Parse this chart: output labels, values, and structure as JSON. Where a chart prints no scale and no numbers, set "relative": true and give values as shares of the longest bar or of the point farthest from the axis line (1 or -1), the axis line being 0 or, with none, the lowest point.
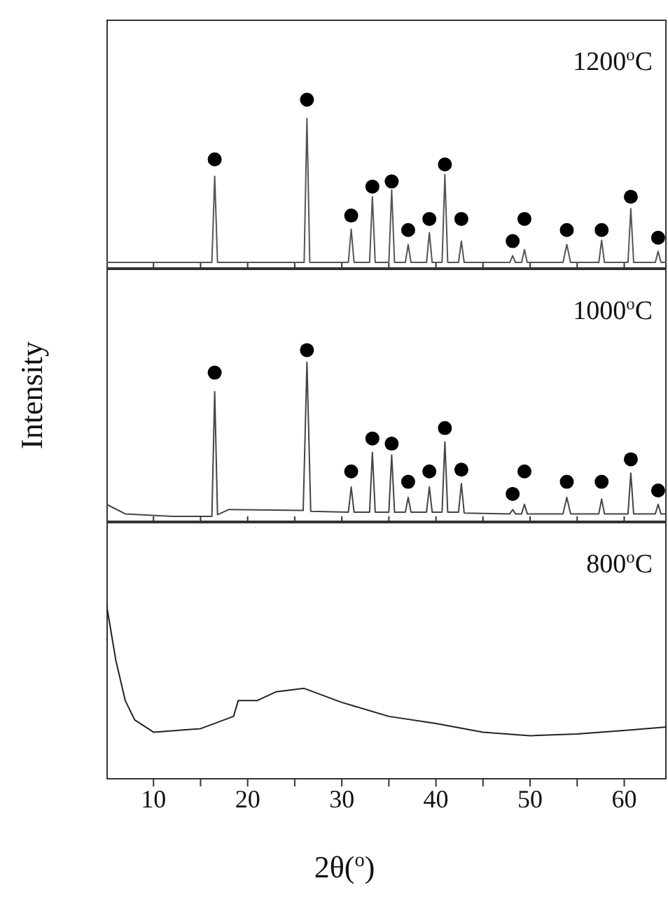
{
  "chart_data": [
    {
      "type": "line",
      "relative": true,
      "annotations": [
        "1200$^{o}$C"
      ],
      "xlim": [
        5,
        64.5
      ],
      "xticks": [
        10,
        {
          "value": 15,
          "label": null
        },
        20,
        {
          "value": 25,
          "label": null
        },
        30,
        {
          "value": 35,
          "label": null
        },
        40,
        {
          "value": 45,
          "label": null
        },
        50,
        {
          "value": 55,
          "label": null
        },
        60
      ],
      "tick_labels": false,
      "series": [
        {
          "color": "#555555",
          "marker": "none",
          "x": [
            5,
            16.2,
            16.5,
            16.8,
            26.0,
            26.3,
            26.6,
            30.7,
            31.0,
            31.3,
            32.95,
            33.25,
            33.55,
            35.0,
            35.3,
            35.6,
            36.75,
            37.05,
            37.35,
            39.0,
            39.3,
            39.6,
            40.65,
            40.95,
            41.25,
            42.4,
            42.7,
            43.0,
            47.85,
            48.15,
            48.45,
            49.1,
            49.4,
            49.7,
            53.5,
            53.9,
            54.3,
            57.3,
            57.6,
            57.9,
            60.4,
            60.7,
            61.0,
            63.3,
            63.6,
            63.9,
            64.5
          ],
          "values": [
            0.045,
            0.045,
            0.55,
            0.045,
            0.045,
            0.89,
            0.045,
            0.045,
            0.24,
            0.045,
            0.045,
            0.43,
            0.045,
            0.045,
            0.47,
            0.045,
            0.045,
            0.15,
            0.045,
            0.045,
            0.22,
            0.045,
            0.045,
            0.56,
            0.045,
            0.045,
            0.17,
            0.045,
            0.045,
            0.085,
            0.045,
            0.045,
            0.12,
            0.045,
            0.045,
            0.15,
            0.045,
            0.045,
            0.175,
            0.045,
            0.045,
            0.36,
            0.045,
            0.045,
            0.11,
            0.045,
            0.045
          ]
        },
        {
          "type": "scatter",
          "color": "#000000",
          "marker": "circle",
          "x": [
            16.5,
            26.3,
            31.0,
            33.25,
            35.3,
            37.05,
            39.3,
            40.95,
            42.7,
            48.15,
            49.4,
            53.9,
            57.6,
            60.7,
            63.6
          ],
          "values": [
            0.65,
            1.0,
            0.32,
            0.49,
            0.52,
            0.235,
            0.3,
            0.62,
            0.3,
            0.17,
            0.3,
            0.235,
            0.235,
            0.43,
            0.19
          ]
        }
      ]
    },
    {
      "type": "line",
      "relative": true,
      "ylabel": "Intensity",
      "annotations": [
        "1000$^{o}$C"
      ],
      "xlim": [
        5,
        64.5
      ],
      "xticks": [
        10,
        {
          "value": 15,
          "label": null
        },
        20,
        {
          "value": 25,
          "label": null
        },
        30,
        {
          "value": 35,
          "label": null
        },
        40,
        {
          "value": 45,
          "label": null
        },
        50,
        {
          "value": 55,
          "label": null
        },
        60
      ],
      "tick_labels": false,
      "series": [
        {
          "color": "#444444",
          "marker": "none",
          "x": [
            5,
            7,
            12,
            16.2,
            16.5,
            16.8,
            18,
            25.9,
            26.3,
            26.7,
            30.7,
            31.0,
            31.3,
            32.95,
            33.25,
            33.55,
            35.0,
            35.3,
            35.6,
            36.75,
            37.05,
            37.35,
            39.0,
            39.3,
            39.6,
            40.65,
            40.95,
            41.25,
            42.4,
            42.7,
            43.0,
            47.85,
            48.15,
            48.45,
            49.1,
            49.4,
            49.7,
            53.5,
            53.9,
            54.3,
            57.3,
            57.6,
            57.9,
            60.4,
            60.7,
            61.0,
            63.3,
            63.6,
            63.9,
            64.5
          ],
          "values": [
            0.11,
            0.055,
            0.04,
            0.04,
            0.76,
            0.05,
            0.08,
            0.075,
            0.93,
            0.07,
            0.065,
            0.21,
            0.065,
            0.065,
            0.41,
            0.065,
            0.065,
            0.395,
            0.065,
            0.065,
            0.15,
            0.065,
            0.065,
            0.21,
            0.065,
            0.065,
            0.47,
            0.065,
            0.065,
            0.23,
            0.06,
            0.055,
            0.08,
            0.055,
            0.055,
            0.11,
            0.055,
            0.055,
            0.15,
            0.055,
            0.055,
            0.14,
            0.055,
            0.055,
            0.29,
            0.055,
            0.055,
            0.11,
            0.055,
            0.055
          ]
        },
        {
          "type": "scatter",
          "color": "#000000",
          "marker": "circle",
          "x": [
            16.5,
            26.3,
            31.0,
            33.25,
            35.3,
            37.05,
            39.3,
            40.95,
            42.7,
            48.15,
            49.4,
            53.9,
            57.6,
            60.7,
            63.6
          ],
          "values": [
            0.87,
            1.0,
            0.3,
            0.49,
            0.46,
            0.24,
            0.3,
            0.55,
            0.31,
            0.17,
            0.3,
            0.24,
            0.24,
            0.37,
            0.19
          ]
        }
      ]
    },
    {
      "type": "line",
      "relative": true,
      "xlabel": "2θ($^{o}$)",
      "annotations": [
        "800$^{o}$C"
      ],
      "xlim": [
        5,
        64.5
      ],
      "xticks": [
        10,
        {
          "value": 15,
          "label": null
        },
        20,
        {
          "value": 25,
          "label": null
        },
        30,
        {
          "value": 35,
          "label": null
        },
        40,
        {
          "value": 45,
          "label": null
        },
        50,
        {
          "value": 55,
          "label": null
        },
        60
      ],
      "tick_labels": "x",
      "series": [
        {
          "color": "#222222",
          "marker": "none",
          "x": [
            5,
            6,
            7,
            8,
            10,
            15,
            18.5,
            19,
            21,
            23,
            26,
            30,
            35,
            40,
            45,
            50,
            55,
            60,
            64.5
          ],
          "values": [
            1.0,
            0.68,
            0.45,
            0.34,
            0.27,
            0.29,
            0.36,
            0.45,
            0.45,
            0.5,
            0.52,
            0.44,
            0.36,
            0.32,
            0.27,
            0.25,
            0.26,
            0.28,
            0.3
          ]
        }
      ]
    }
  ]
}
